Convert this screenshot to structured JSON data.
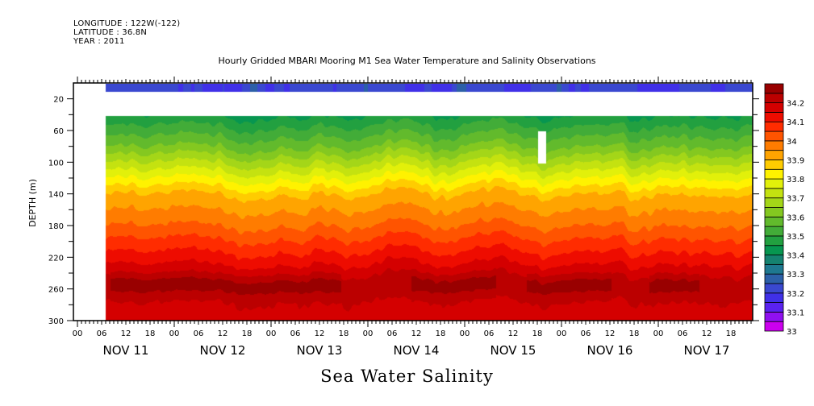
{
  "header": {
    "longitude": "LONGITUDE : 122W(-122)",
    "latitude": "LATITUDE : 36.8N",
    "year": "YEAR : 2011"
  },
  "chart_data": {
    "type": "heatmap",
    "title": "Hourly Gridded MBARI Mooring M1 Sea Water Temperature and Salinity Observations",
    "xlabel": "Sea Water Salinity",
    "ylabel": "DEPTH (m)",
    "x_axis": {
      "unit": "hour",
      "start": "NOV 11 00",
      "range_hours": [
        0,
        167.5
      ],
      "hour_tick_labels": [
        "00",
        "06",
        "12",
        "18"
      ],
      "day_labels": [
        "NOV 11",
        "NOV 12",
        "NOV 13",
        "NOV 14",
        "NOV 15",
        "NOV 16",
        "NOV 17"
      ]
    },
    "y_axis": {
      "range": [
        0,
        300
      ],
      "inverted": true,
      "ticks": [
        20,
        60,
        100,
        140,
        180,
        220,
        260,
        300
      ]
    },
    "data_start_hour": 7,
    "missing_regions": [
      {
        "depth_range": [
          10,
          40
        ],
        "description": "no data band"
      },
      {
        "hour_range": [
          114,
          116
        ],
        "depth_range": [
          60,
          100
        ],
        "description": "missing column near NOV 15 19h"
      }
    ],
    "surface_band": {
      "depth_range": [
        0,
        10
      ],
      "value_range": [
        33.15,
        33.3
      ]
    },
    "profile_typical": [
      {
        "depth": 40,
        "value": 33.45
      },
      {
        "depth": 80,
        "value": 33.6
      },
      {
        "depth": 110,
        "value": 33.75
      },
      {
        "depth": 140,
        "value": 33.9
      },
      {
        "depth": 180,
        "value": 34.0
      },
      {
        "depth": 220,
        "value": 34.12
      },
      {
        "depth": 255,
        "value": 34.23
      },
      {
        "depth": 290,
        "value": 34.18
      }
    ],
    "colorbar": {
      "min": 33.0,
      "max": 34.3,
      "step": 0.05,
      "tick_labels": [
        "33",
        "33.1",
        "33.2",
        "33.3",
        "33.4",
        "33.5",
        "33.6",
        "33.7",
        "33.8",
        "33.9",
        "34",
        "34.1",
        "34.2"
      ],
      "colors": [
        "#cc00ee",
        "#9010f0",
        "#5a22f0",
        "#4030e8",
        "#3a48d0",
        "#2c60a8",
        "#1e7890",
        "#158270",
        "#079650",
        "#22a040",
        "#42ac38",
        "#62ba2c",
        "#84c820",
        "#a4d618",
        "#c4e210",
        "#e2f00a",
        "#fff200",
        "#ffcc00",
        "#ffa400",
        "#ff7c00",
        "#ff5400",
        "#ff2c00",
        "#ee0c00",
        "#d40000",
        "#bb0000",
        "#990000"
      ]
    }
  }
}
